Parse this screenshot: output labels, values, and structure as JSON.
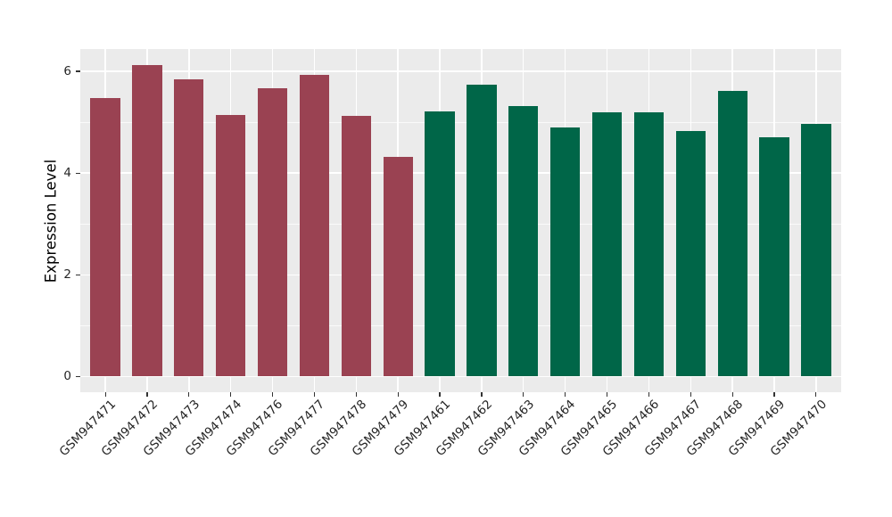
{
  "figure": {
    "background": "#FFFFFF",
    "panel_background": "#EBEBEB",
    "gridline_color": "#FFFFFF",
    "tick_mark_color": "#333333",
    "axis_text_color": "#262626",
    "axis_title_color": "#000000"
  },
  "chart_data": {
    "type": "bar",
    "title": "",
    "xlabel": "",
    "ylabel": "Expression Level",
    "ylim": [
      0,
      6.44
    ],
    "yticks": [
      0,
      2,
      4,
      6
    ],
    "ytick_labels": [
      "0",
      "2",
      "4",
      "6"
    ],
    "yticks_minor": [
      1,
      3,
      5
    ],
    "grid": "white major and minor horizontal lines, white vertical lines at category centers, on gray panel",
    "legend_position": "none",
    "categories": [
      "GSM947471",
      "GSM947472",
      "GSM947473",
      "GSM947474",
      "GSM947476",
      "GSM947477",
      "GSM947478",
      "GSM947479",
      "GSM947461",
      "GSM947462",
      "GSM947463",
      "GSM947464",
      "GSM947465",
      "GSM947466",
      "GSM947467",
      "GSM947468",
      "GSM947469",
      "GSM947470"
    ],
    "values": [
      5.47,
      6.12,
      5.84,
      5.15,
      5.66,
      5.94,
      5.12,
      4.32,
      5.21,
      5.73,
      5.31,
      4.89,
      5.2,
      5.2,
      4.83,
      5.61,
      4.71,
      4.96
    ],
    "groups": [
      "A",
      "A",
      "A",
      "A",
      "A",
      "A",
      "A",
      "A",
      "B",
      "B",
      "B",
      "B",
      "B",
      "B",
      "B",
      "B",
      "B",
      "B"
    ],
    "group_colors": {
      "A": "#9A4252",
      "B": "#006648"
    }
  }
}
